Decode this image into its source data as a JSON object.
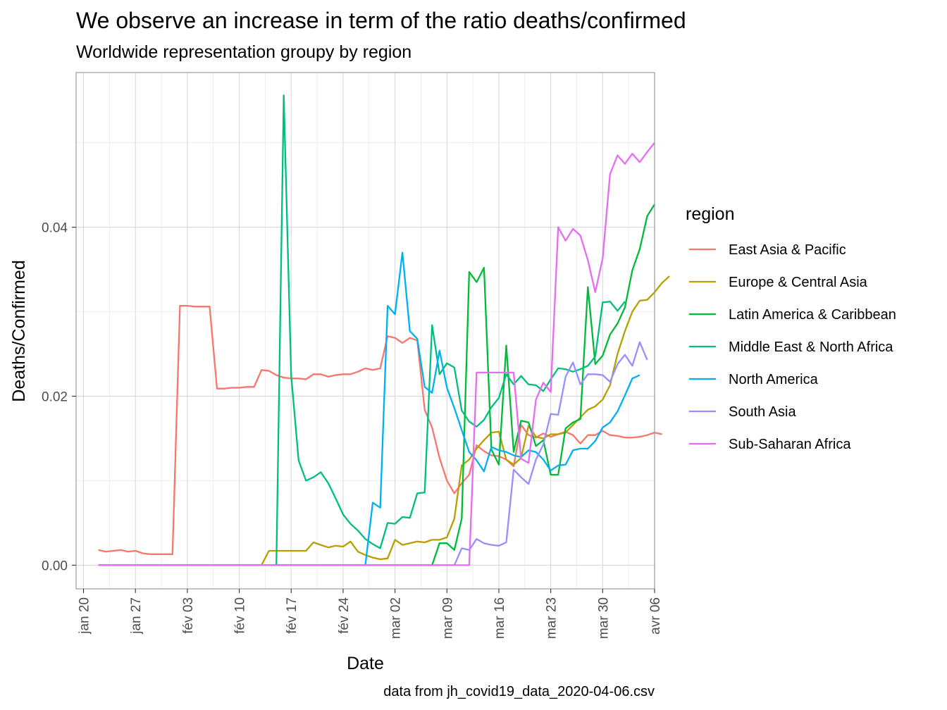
{
  "chart_data": {
    "type": "line",
    "title": "We observe an increase in term of the ratio  deaths/confirmed",
    "subtitle": "Worldwide representation groupy by region",
    "xlabel": "Date",
    "ylabel": "Deaths/Confirmed",
    "caption": "data from jh_covid19_data_2020-04-06.csv",
    "legend_title": "region",
    "legend_position": "right",
    "grid": true,
    "x_type": "date",
    "xlim": [
      "2020-01-19",
      "2020-04-06"
    ],
    "ylim": [
      -0.0028,
      0.0583
    ],
    "x_ticks": [
      {
        "date": "2020-01-20",
        "label": "jan 20"
      },
      {
        "date": "2020-01-27",
        "label": "jan 27"
      },
      {
        "date": "2020-02-03",
        "label": "fév 03"
      },
      {
        "date": "2020-02-10",
        "label": "fév 10"
      },
      {
        "date": "2020-02-17",
        "label": "fév 17"
      },
      {
        "date": "2020-02-24",
        "label": "fév 24"
      },
      {
        "date": "2020-03-02",
        "label": "mar 02"
      },
      {
        "date": "2020-03-09",
        "label": "mar 09"
      },
      {
        "date": "2020-03-16",
        "label": "mar 16"
      },
      {
        "date": "2020-03-23",
        "label": "mar 23"
      },
      {
        "date": "2020-03-30",
        "label": "mar 30"
      },
      {
        "date": "2020-04-06",
        "label": "avr 06"
      }
    ],
    "y_ticks": [
      {
        "value": 0,
        "label": "0.00"
      },
      {
        "value": 0.02,
        "label": "0.02"
      },
      {
        "value": 0.04,
        "label": "0.04"
      }
    ],
    "y_minor": [
      0.01,
      0.03,
      0.05
    ],
    "start_date": "2020-01-22",
    "series": [
      {
        "name": "East Asia & Pacific",
        "color": "#F8766D",
        "values": [
          0.0018,
          0.0016,
          0.0017,
          0.0018,
          0.0016,
          0.0017,
          0.0014,
          0.0013,
          0.0013,
          0.0013,
          0.0013,
          0.0307,
          0.0307,
          0.0306,
          0.0306,
          0.0306,
          0.0209,
          0.0209,
          0.021,
          0.021,
          0.0211,
          0.0211,
          0.0231,
          0.023,
          0.0225,
          0.0222,
          0.0221,
          0.0221,
          0.022,
          0.0226,
          0.0226,
          0.0223,
          0.0225,
          0.0226,
          0.0226,
          0.0229,
          0.0233,
          0.0231,
          0.0233,
          0.0271,
          0.0269,
          0.0263,
          0.0269,
          0.0266,
          0.0184,
          0.0163,
          0.0127,
          0.01,
          0.0085,
          0.0097,
          0.0107,
          0.0142,
          0.0135,
          0.013,
          0.0129,
          0.0125,
          0.0117,
          0.0166,
          0.0154,
          0.0151,
          0.0156,
          0.0152,
          0.0155,
          0.0158,
          0.0154,
          0.0144,
          0.0154,
          0.0154,
          0.0159,
          0.0154,
          0.0153,
          0.0151,
          0.0151,
          0.0152,
          0.0154,
          0.0157,
          0.0155
        ]
      },
      {
        "name": "Europe & Central Asia",
        "color": "#B79F00",
        "values": [
          0,
          0,
          0,
          0,
          0,
          0,
          0,
          0,
          0,
          0,
          0,
          0,
          0,
          0,
          0,
          0,
          0,
          0,
          0,
          0,
          0,
          0,
          0,
          0.0017,
          0.0017,
          0.0017,
          0.0017,
          0.0017,
          0.0017,
          0.0027,
          0.0024,
          0.0021,
          0.0023,
          0.0022,
          0.0028,
          0.0016,
          0.0012,
          0.0009,
          0.0007,
          0.0008,
          0.003,
          0.0024,
          0.0026,
          0.0028,
          0.0027,
          0.003,
          0.003,
          0.0033,
          0.0055,
          0.0118,
          0.0125,
          0.0138,
          0.0148,
          0.0157,
          0.0158,
          0.0125,
          0.0119,
          0.0127,
          0.0165,
          0.0152,
          0.015,
          0.0155,
          0.0155,
          0.0157,
          0.0166,
          0.0175,
          0.0184,
          0.0188,
          0.0196,
          0.0213,
          0.025,
          0.0277,
          0.03,
          0.0313,
          0.0314,
          0.0323,
          0.0334,
          0.0342
        ]
      },
      {
        "name": "Latin America & Caribbean",
        "color": "#00BA38",
        "values": [
          0,
          0,
          0,
          0,
          0,
          0,
          0,
          0,
          0,
          0,
          0,
          0,
          0,
          0,
          0,
          0,
          0,
          0,
          0,
          0,
          0,
          0,
          0,
          0,
          0,
          0,
          0,
          0,
          0,
          0,
          0,
          0,
          0,
          0,
          0,
          0,
          0,
          0,
          0,
          0,
          0,
          0,
          0,
          0,
          0,
          0,
          0.0026,
          0.0026,
          0.0018,
          0.0055,
          0.0347,
          0.0335,
          0.0352,
          0.0137,
          0.0119,
          0.026,
          0.0134,
          0.0171,
          0.0169,
          0.0141,
          0.0148,
          0.0107,
          0.0107,
          0.0162,
          0.0169,
          0.0173,
          0.0329,
          0.0238,
          0.0248,
          0.0273,
          0.0286,
          0.0305,
          0.0349,
          0.0374,
          0.0413,
          0.0427
        ]
      },
      {
        "name": "Middle East & North Africa",
        "color": "#00BF7D",
        "values": [
          0,
          0,
          0,
          0,
          0,
          0,
          0,
          0,
          0,
          0,
          0,
          0,
          0,
          0,
          0,
          0,
          0,
          0,
          0,
          0,
          0,
          0,
          0,
          0,
          0,
          0.0556,
          0.0225,
          0.0124,
          0.01,
          0.0104,
          0.011,
          0.0097,
          0.0079,
          0.006,
          0.0049,
          0.0041,
          0.0031,
          0.0025,
          0.002,
          0.005,
          0.0049,
          0.0057,
          0.0056,
          0.0085,
          0.0086,
          0.0284,
          0.0226,
          0.0239,
          0.0234,
          0.0183,
          0.017,
          0.0164,
          0.0172,
          0.0187,
          0.0198,
          0.0226,
          0.0214,
          0.0224,
          0.0214,
          0.0213,
          0.0206,
          0.022,
          0.0233,
          0.0232,
          0.0229,
          0.0232,
          0.0236,
          0.0247,
          0.0311,
          0.0312,
          0.0301,
          0.0312
        ]
      },
      {
        "name": "North America",
        "color": "#00B0F6",
        "values": [
          0,
          0,
          0,
          0,
          0,
          0,
          0,
          0,
          0,
          0,
          0,
          0,
          0,
          0,
          0,
          0,
          0,
          0,
          0,
          0,
          0,
          0,
          0,
          0,
          0,
          0,
          0,
          0,
          0,
          0,
          0,
          0,
          0,
          0,
          0,
          0,
          0,
          0.0074,
          0.0068,
          0.0307,
          0.0297,
          0.037,
          0.0277,
          0.0268,
          0.0211,
          0.0204,
          0.0254,
          0.021,
          0.0186,
          0.016,
          0.0134,
          0.0124,
          0.0111,
          0.014,
          0.0136,
          0.0134,
          0.013,
          0.0128,
          0.0136,
          0.0134,
          0.0125,
          0.0112,
          0.0118,
          0.0119,
          0.0136,
          0.0138,
          0.0138,
          0.0147,
          0.0163,
          0.0169,
          0.0182,
          0.0201,
          0.0221,
          0.0225
        ]
      },
      {
        "name": "South Asia",
        "color": "#9590FF",
        "values": [
          0,
          0,
          0,
          0,
          0,
          0,
          0,
          0,
          0,
          0,
          0,
          0,
          0,
          0,
          0,
          0,
          0,
          0,
          0,
          0,
          0,
          0,
          0,
          0,
          0,
          0,
          0,
          0,
          0,
          0,
          0,
          0,
          0,
          0,
          0,
          0,
          0,
          0,
          0,
          0,
          0,
          0,
          0,
          0,
          0,
          0,
          0,
          0,
          0,
          0.002,
          0.0018,
          0.0031,
          0.0026,
          0.0024,
          0.0023,
          0.0027,
          0.0113,
          0.0104,
          0.0096,
          0.0125,
          0.0143,
          0.0179,
          0.0178,
          0.0223,
          0.024,
          0.0214,
          0.0226,
          0.0226,
          0.0225,
          0.0217,
          0.0238,
          0.0249,
          0.0236,
          0.0264,
          0.0243
        ]
      },
      {
        "name": "Sub-Saharan Africa",
        "color": "#E76BF3",
        "values": [
          0,
          0,
          0,
          0,
          0,
          0,
          0,
          0,
          0,
          0,
          0,
          0,
          0,
          0,
          0,
          0,
          0,
          0,
          0,
          0,
          0,
          0,
          0,
          0,
          0,
          0,
          0,
          0,
          0,
          0,
          0,
          0,
          0,
          0,
          0,
          0,
          0,
          0,
          0,
          0,
          0,
          0,
          0,
          0,
          0,
          0,
          0,
          0,
          0,
          0,
          0,
          0.0228,
          0.0228,
          0.0228,
          0.0228,
          0.0228,
          0.0228,
          0.0126,
          0.0121,
          0.0196,
          0.0216,
          0.0205,
          0.04,
          0.0384,
          0.0398,
          0.039,
          0.0361,
          0.0323,
          0.0363,
          0.0463,
          0.0485,
          0.0475,
          0.0487,
          0.0477,
          0.0489,
          0.05
        ]
      }
    ]
  }
}
